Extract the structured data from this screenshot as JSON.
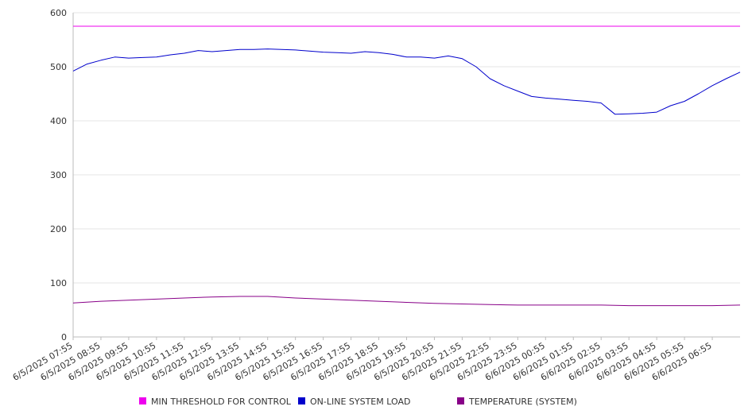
{
  "chart_data": {
    "type": "line",
    "title": "",
    "xlabel": "",
    "ylabel": "",
    "ylim": [
      0,
      600
    ],
    "yticks": [
      0,
      100,
      200,
      300,
      400,
      500,
      600
    ],
    "grid": true,
    "legend_position": "bottom",
    "x_start": "6/5/2025 07:55",
    "x_end": "6/6/2025 07:55",
    "categories": [
      "6/5/2025 07:55",
      "6/5/2025 08:55",
      "6/5/2025 09:55",
      "6/5/2025 10:55",
      "6/5/2025 11:55",
      "6/5/2025 12:55",
      "6/5/2025 13:55",
      "6/5/2025 14:55",
      "6/5/2025 15:55",
      "6/5/2025 16:55",
      "6/5/2025 17:55",
      "6/5/2025 18:55",
      "6/5/2025 19:55",
      "6/5/2025 20:55",
      "6/5/2025 21:55",
      "6/5/2025 22:55",
      "6/5/2025 23:55",
      "6/6/2025 00:55",
      "6/6/2025 01:55",
      "6/6/2025 02:55",
      "6/6/2025 03:55",
      "6/6/2025 04:55",
      "6/6/2025 05:55",
      "6/6/2025 06:55"
    ],
    "series": [
      {
        "name": "MIN THRESHOLD FOR CONTROL",
        "color": "#ee00ee",
        "x": [
          "6/5/2025 07:55",
          "6/6/2025 07:55"
        ],
        "values": [
          575,
          575
        ]
      },
      {
        "name": "ON-LINE SYSTEM LOAD",
        "color": "#0000cc",
        "x": [
          "6/5/2025 07:55",
          "6/5/2025 08:25",
          "6/5/2025 08:55",
          "6/5/2025 09:25",
          "6/5/2025 09:55",
          "6/5/2025 10:25",
          "6/5/2025 10:55",
          "6/5/2025 11:25",
          "6/5/2025 11:55",
          "6/5/2025 12:25",
          "6/5/2025 12:55",
          "6/5/2025 13:25",
          "6/5/2025 13:55",
          "6/5/2025 14:25",
          "6/5/2025 14:55",
          "6/5/2025 15:25",
          "6/5/2025 15:55",
          "6/5/2025 16:25",
          "6/5/2025 16:55",
          "6/5/2025 17:25",
          "6/5/2025 17:55",
          "6/5/2025 18:25",
          "6/5/2025 18:55",
          "6/5/2025 19:25",
          "6/5/2025 19:55",
          "6/5/2025 20:25",
          "6/5/2025 20:55",
          "6/5/2025 21:25",
          "6/5/2025 21:55",
          "6/5/2025 22:25",
          "6/5/2025 22:55",
          "6/5/2025 23:25",
          "6/5/2025 23:55",
          "6/6/2025 00:25",
          "6/6/2025 00:55",
          "6/6/2025 01:25",
          "6/6/2025 01:55",
          "6/6/2025 02:25",
          "6/6/2025 02:55",
          "6/6/2025 03:25",
          "6/6/2025 03:55",
          "6/6/2025 04:25",
          "6/6/2025 04:55",
          "6/6/2025 05:25",
          "6/6/2025 05:55",
          "6/6/2025 06:25",
          "6/6/2025 06:55",
          "6/6/2025 07:25",
          "6/6/2025 07:55"
        ],
        "values": [
          492,
          505,
          512,
          518,
          516,
          517,
          518,
          522,
          525,
          530,
          528,
          530,
          532,
          532,
          533,
          532,
          531,
          529,
          527,
          526,
          525,
          528,
          526,
          523,
          518,
          518,
          516,
          520,
          515,
          500,
          478,
          465,
          455,
          445,
          442,
          440,
          438,
          436,
          433,
          412,
          413,
          414,
          416,
          428,
          436,
          450,
          465,
          478,
          490
        ]
      },
      {
        "name": "TEMPERATURE (SYSTEM)",
        "color": "#880088",
        "x": [
          "6/5/2025 07:55",
          "6/5/2025 08:55",
          "6/5/2025 09:55",
          "6/5/2025 10:55",
          "6/5/2025 11:55",
          "6/5/2025 12:55",
          "6/5/2025 13:55",
          "6/5/2025 14:55",
          "6/5/2025 15:55",
          "6/5/2025 16:55",
          "6/5/2025 17:55",
          "6/5/2025 18:55",
          "6/5/2025 19:55",
          "6/5/2025 20:55",
          "6/5/2025 21:55",
          "6/5/2025 22:55",
          "6/5/2025 23:55",
          "6/6/2025 00:55",
          "6/6/2025 01:55",
          "6/6/2025 02:55",
          "6/6/2025 03:55",
          "6/6/2025 04:55",
          "6/6/2025 05:55",
          "6/6/2025 06:55",
          "6/6/2025 07:55"
        ],
        "values": [
          63,
          66,
          68,
          70,
          72,
          74,
          75,
          75,
          72,
          70,
          68,
          66,
          64,
          62,
          61,
          60,
          59,
          59,
          59,
          59,
          58,
          58,
          58,
          58,
          59
        ]
      }
    ]
  }
}
